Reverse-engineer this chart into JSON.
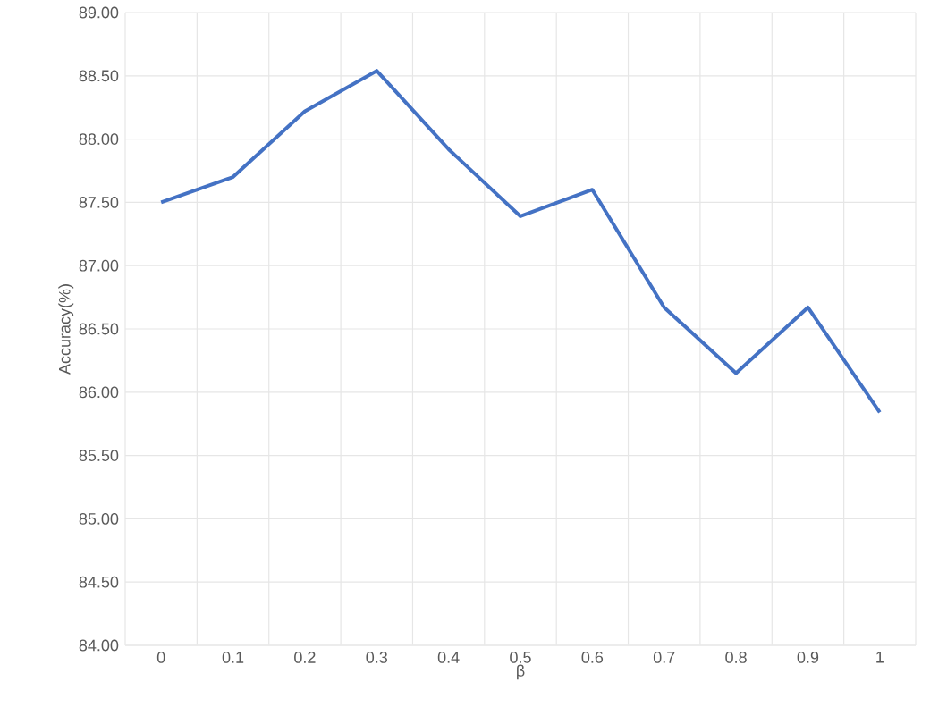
{
  "chart_data": {
    "type": "line",
    "xlabel": "β",
    "ylabel": "Accuracy(%)",
    "categories": [
      "0",
      "0.1",
      "0.2",
      "0.3",
      "0.4",
      "0.5",
      "0.6",
      "0.7",
      "0.8",
      "0.9",
      "1"
    ],
    "series": [
      {
        "color": "#4472c4",
        "values": [
          87.5,
          87.7,
          88.22,
          88.54,
          87.92,
          87.39,
          87.6,
          86.67,
          86.15,
          86.67,
          85.84
        ]
      }
    ],
    "ylim": [
      84,
      89
    ],
    "yticks": [
      {
        "value": 84,
        "label": "84.00"
      },
      {
        "value": 84.5,
        "label": "84.50"
      },
      {
        "value": 85,
        "label": "85.00"
      },
      {
        "value": 85.5,
        "label": "85.50"
      },
      {
        "value": 86,
        "label": "86.00"
      },
      {
        "value": 86.5,
        "label": "86.50"
      },
      {
        "value": 87,
        "label": "87.00"
      },
      {
        "value": 87.5,
        "label": "87.50"
      },
      {
        "value": 88,
        "label": "88.00"
      },
      {
        "value": 88.5,
        "label": "88.50"
      },
      {
        "value": 89,
        "label": "89.00"
      }
    ],
    "grid": true,
    "marker": "none",
    "line_style": "solid"
  }
}
